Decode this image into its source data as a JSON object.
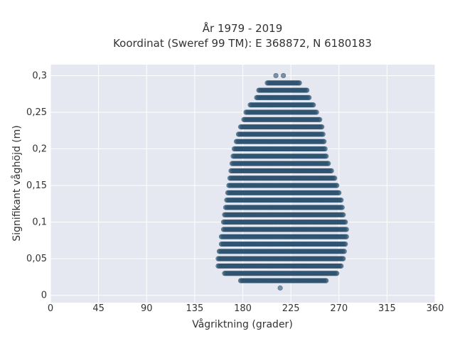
{
  "chart_data": {
    "type": "scatter",
    "title_line1": "År 1979 - 2019",
    "title_line2": "Koordinat (Sweref 99 TM): E 368872, N 6180183",
    "xlabel": "Vågriktning (grader)",
    "ylabel": "Signifikant våghöjd (m)",
    "xlim": [
      0,
      360
    ],
    "ylim": [
      -0.01,
      0.315
    ],
    "xticks": [
      0,
      45,
      90,
      135,
      180,
      225,
      270,
      315,
      360
    ],
    "xtick_labels": [
      "0",
      "45",
      "90",
      "135",
      "180",
      "225",
      "270",
      "315",
      "360"
    ],
    "yticks": [
      0,
      0.05,
      0.1,
      0.15,
      0.2,
      0.25,
      0.3
    ],
    "ytick_labels": [
      "0",
      "0,05",
      "0,1",
      "0,15",
      "0,2",
      "0,25",
      "0,3"
    ],
    "grid": true,
    "background": "#e5e8f0",
    "marker_color": "#2e5370",
    "bands": [
      {
        "y": 0.01,
        "x_points": [
          215
        ]
      },
      {
        "y": 0.02,
        "x_range": [
          178,
          258
        ]
      },
      {
        "y": 0.03,
        "x_range": [
          163,
          268
        ]
      },
      {
        "y": 0.04,
        "x_range": [
          157,
          272
        ]
      },
      {
        "y": 0.05,
        "x_range": [
          157,
          274
        ]
      },
      {
        "y": 0.06,
        "x_range": [
          158,
          275
        ]
      },
      {
        "y": 0.07,
        "x_range": [
          160,
          276
        ]
      },
      {
        "y": 0.08,
        "x_range": [
          160,
          277
        ]
      },
      {
        "y": 0.09,
        "x_range": [
          162,
          277
        ]
      },
      {
        "y": 0.1,
        "x_range": [
          162,
          276
        ]
      },
      {
        "y": 0.11,
        "x_range": [
          163,
          274
        ]
      },
      {
        "y": 0.12,
        "x_range": [
          164,
          273
        ]
      },
      {
        "y": 0.13,
        "x_range": [
          165,
          272
        ]
      },
      {
        "y": 0.14,
        "x_range": [
          166,
          270
        ]
      },
      {
        "y": 0.15,
        "x_range": [
          167,
          268
        ]
      },
      {
        "y": 0.16,
        "x_range": [
          168,
          266
        ]
      },
      {
        "y": 0.17,
        "x_range": [
          169,
          263
        ]
      },
      {
        "y": 0.18,
        "x_range": [
          170,
          260
        ]
      },
      {
        "y": 0.19,
        "x_range": [
          171,
          258
        ]
      },
      {
        "y": 0.2,
        "x_range": [
          172,
          257
        ]
      },
      {
        "y": 0.21,
        "x_range": [
          174,
          256
        ]
      },
      {
        "y": 0.22,
        "x_range": [
          176,
          255
        ]
      },
      {
        "y": 0.23,
        "x_range": [
          178,
          254
        ]
      },
      {
        "y": 0.24,
        "x_range": [
          181,
          252
        ]
      },
      {
        "y": 0.25,
        "x_range": [
          183,
          249
        ]
      },
      {
        "y": 0.26,
        "x_range": [
          187,
          246
        ]
      },
      {
        "y": 0.27,
        "x_range": [
          193,
          242
        ]
      },
      {
        "y": 0.28,
        "x_range": [
          195,
          240
        ]
      },
      {
        "y": 0.29,
        "x_range": [
          203,
          233
        ]
      },
      {
        "y": 0.3,
        "x_points": [
          211,
          218
        ]
      }
    ]
  }
}
